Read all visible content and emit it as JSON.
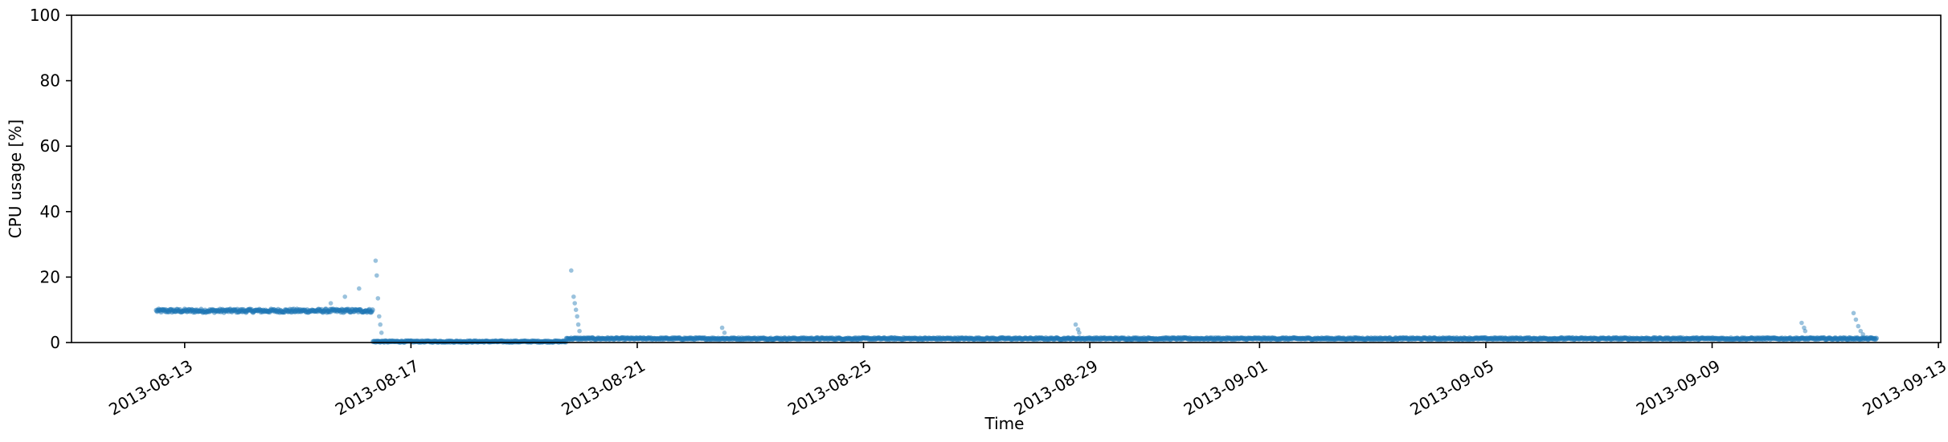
{
  "chart_data": {
    "type": "scatter",
    "xlabel": "Time",
    "ylabel": "CPU usage [%]",
    "xlim": [
      "2013-08-11T00:00",
      "2013-09-13T01:00"
    ],
    "ylim": [
      0,
      100
    ],
    "grid": false,
    "point_color": "#1f77b4",
    "x_ticks": [
      "2013-08-13",
      "2013-08-17",
      "2013-08-21",
      "2013-08-25",
      "2013-08-29",
      "2013-09-01",
      "2013-09-05",
      "2013-09-09",
      "2013-09-13"
    ],
    "y_ticks": [
      0,
      20,
      40,
      60,
      80,
      100
    ],
    "segments": [
      {
        "start": "2013-08-12T12:00",
        "end": "2013-08-16T08:00",
        "level": 9.7,
        "jitter": 0.5
      },
      {
        "start": "2013-08-16T08:00",
        "end": "2013-08-19T18:00",
        "level": 0.3,
        "jitter": 0.2
      },
      {
        "start": "2013-08-19T18:00",
        "end": "2013-09-11T22:00",
        "level": 1.2,
        "jitter": 0.25
      }
    ],
    "outliers": [
      {
        "x": "2013-08-15T14:00",
        "y": 12.0
      },
      {
        "x": "2013-08-15T20:00",
        "y": 14.0
      },
      {
        "x": "2013-08-16T02:00",
        "y": 16.5
      },
      {
        "x": "2013-08-16T09:00",
        "y": 25.0
      },
      {
        "x": "2013-08-16T09:30",
        "y": 20.5
      },
      {
        "x": "2013-08-16T10:00",
        "y": 13.5
      },
      {
        "x": "2013-08-16T10:30",
        "y": 8.0
      },
      {
        "x": "2013-08-16T11:00",
        "y": 5.5
      },
      {
        "x": "2013-08-16T11:30",
        "y": 3.0
      },
      {
        "x": "2013-08-19T20:00",
        "y": 22.0
      },
      {
        "x": "2013-08-19T21:00",
        "y": 14.0
      },
      {
        "x": "2013-08-19T21:30",
        "y": 12.0
      },
      {
        "x": "2013-08-19T22:00",
        "y": 10.0
      },
      {
        "x": "2013-08-19T22:30",
        "y": 8.0
      },
      {
        "x": "2013-08-19T23:00",
        "y": 5.5
      },
      {
        "x": "2013-08-19T23:30",
        "y": 3.5
      },
      {
        "x": "2013-08-22T12:00",
        "y": 4.5
      },
      {
        "x": "2013-08-22T13:00",
        "y": 3.0
      },
      {
        "x": "2013-08-28T18:00",
        "y": 5.5
      },
      {
        "x": "2013-08-28T19:00",
        "y": 4.0
      },
      {
        "x": "2013-08-28T19:30",
        "y": 3.0
      },
      {
        "x": "2013-09-10T14:00",
        "y": 6.0
      },
      {
        "x": "2013-09-10T15:00",
        "y": 4.5
      },
      {
        "x": "2013-09-10T15:30",
        "y": 3.5
      },
      {
        "x": "2013-09-11T12:00",
        "y": 9.0
      },
      {
        "x": "2013-09-11T13:00",
        "y": 7.0
      },
      {
        "x": "2013-09-11T14:00",
        "y": 5.0
      },
      {
        "x": "2013-09-11T15:00",
        "y": 3.5
      },
      {
        "x": "2013-09-11T16:00",
        "y": 2.5
      }
    ]
  }
}
